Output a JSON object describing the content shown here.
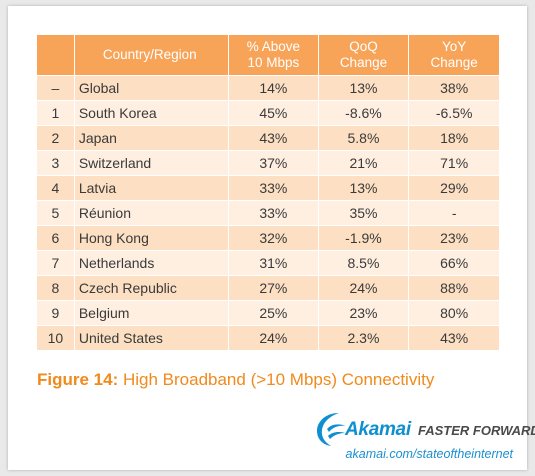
{
  "table": {
    "headers": {
      "rank": "",
      "country": "Country/Region",
      "above_10": [
        "% Above",
        "10 Mbps"
      ],
      "qoq": [
        "QoQ",
        "Change"
      ],
      "yoy": [
        "YoY",
        "Change"
      ]
    },
    "rows": [
      {
        "rank": "–",
        "country": "Global",
        "above_10": "14%",
        "qoq": "13%",
        "yoy": "38%"
      },
      {
        "rank": "1",
        "country": "South Korea",
        "above_10": "45%",
        "qoq": "-8.6%",
        "yoy": "-6.5%"
      },
      {
        "rank": "2",
        "country": "Japan",
        "above_10": "43%",
        "qoq": "5.8%",
        "yoy": "18%"
      },
      {
        "rank": "3",
        "country": "Switzerland",
        "above_10": "37%",
        "qoq": "21%",
        "yoy": "71%"
      },
      {
        "rank": "4",
        "country": "Latvia",
        "above_10": "33%",
        "qoq": "13%",
        "yoy": "29%"
      },
      {
        "rank": "5",
        "country": "Réunion",
        "above_10": "33%",
        "qoq": "35%",
        "yoy": "-"
      },
      {
        "rank": "6",
        "country": "Hong Kong",
        "above_10": "32%",
        "qoq": "-1.9%",
        "yoy": "23%"
      },
      {
        "rank": "7",
        "country": "Netherlands",
        "above_10": "31%",
        "qoq": "8.5%",
        "yoy": "66%"
      },
      {
        "rank": "8",
        "country": "Czech Republic",
        "above_10": "27%",
        "qoq": "24%",
        "yoy": "88%"
      },
      {
        "rank": "9",
        "country": "Belgium",
        "above_10": "25%",
        "qoq": "23%",
        "yoy": "80%"
      },
      {
        "rank": "10",
        "country": "United States",
        "above_10": "24%",
        "qoq": "2.3%",
        "yoy": "43%"
      }
    ]
  },
  "caption": {
    "label": "Figure 14:",
    "text": " High Broadband (>10 Mbps) Connectivity"
  },
  "logo": {
    "brand": "Akamai",
    "tagline": "FASTER FORWARD",
    "icon": "akamai-wave-logo"
  },
  "url": "akamai.com/stateoftheinternet",
  "colors": {
    "header_bg": "#f7a459",
    "row_odd": "#fde0c3",
    "row_even": "#feefe1",
    "caption": "#f08a1c",
    "brand_blue": "#0f8fd1"
  }
}
